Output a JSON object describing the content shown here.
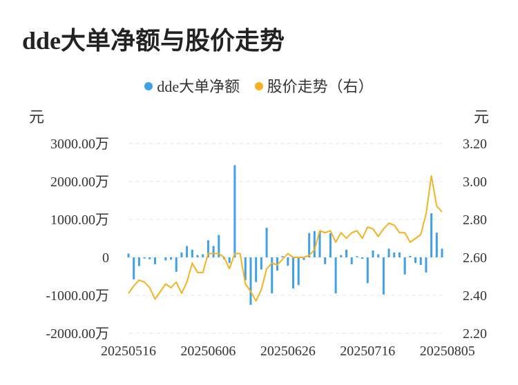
{
  "title": "dde大单净额与股价走势",
  "colors": {
    "bar": "#3ea0e6",
    "line": "#f3b21f",
    "grid": "#e6e6e6"
  },
  "chart_data": {
    "type": "bar+line",
    "title": "dde大单净额与股价走势",
    "legend": [
      {
        "name": "dde大单净额",
        "color": "#3ea0e6",
        "marker": "dot"
      },
      {
        "name": "股价走势（右）",
        "color": "#f3b21f",
        "marker": "dot"
      }
    ],
    "legend_position": "top-center",
    "left_axis": {
      "unit": "元",
      "ticks": [
        "3000.00万",
        "2000.00万",
        "1000.00万",
        "0",
        "-1000.00万",
        "-2000.00万"
      ],
      "tick_values": [
        3000,
        2000,
        1000,
        0,
        -1000,
        -2000
      ],
      "range": [
        -2000,
        3000
      ]
    },
    "right_axis": {
      "unit": "元",
      "ticks": [
        "3.20",
        "3.00",
        "2.80",
        "2.60",
        "2.40",
        "2.20"
      ],
      "tick_values": [
        3.2,
        3.0,
        2.8,
        2.6,
        2.4,
        2.2
      ],
      "range": [
        2.2,
        3.2
      ]
    },
    "x_tick_labels": [
      "20250516",
      "20250606",
      "20250626",
      "20250716",
      "20250805"
    ],
    "x_tick_indices": [
      0,
      15,
      30,
      45,
      60
    ],
    "grid": true,
    "series": [
      {
        "name": "dde大单净额",
        "kind": "bar",
        "axis": "left",
        "values": [
          100,
          -580,
          -230,
          -30,
          -50,
          -180,
          0,
          -80,
          -60,
          -380,
          130,
          300,
          200,
          60,
          80,
          450,
          300,
          590,
          -50,
          -150,
          2430,
          0,
          -600,
          -1250,
          -650,
          -320,
          780,
          -950,
          -350,
          30,
          -220,
          -820,
          -730,
          -70,
          640,
          690,
          680,
          -180,
          640,
          -950,
          60,
          200,
          -180,
          30,
          -40,
          -680,
          180,
          80,
          -980,
          230,
          130,
          130,
          -450,
          40,
          -150,
          -200,
          -400,
          1160,
          650,
          230
        ]
      },
      {
        "name": "股价走势（右）",
        "kind": "line",
        "axis": "right",
        "values": [
          2.41,
          2.45,
          2.48,
          2.47,
          2.44,
          2.38,
          2.42,
          2.46,
          2.44,
          2.47,
          2.41,
          2.47,
          2.57,
          2.52,
          2.52,
          2.62,
          2.62,
          2.62,
          2.6,
          2.54,
          2.62,
          2.62,
          2.46,
          2.42,
          2.37,
          2.43,
          2.54,
          2.57,
          2.56,
          2.59,
          2.62,
          2.6,
          2.6,
          2.6,
          2.61,
          2.64,
          2.74,
          2.73,
          2.74,
          2.68,
          2.73,
          2.7,
          2.73,
          2.74,
          2.7,
          2.76,
          2.75,
          2.71,
          2.75,
          2.78,
          2.77,
          2.73,
          2.73,
          2.68,
          2.7,
          2.72,
          2.83,
          3.03,
          2.87,
          2.84
        ]
      }
    ]
  }
}
